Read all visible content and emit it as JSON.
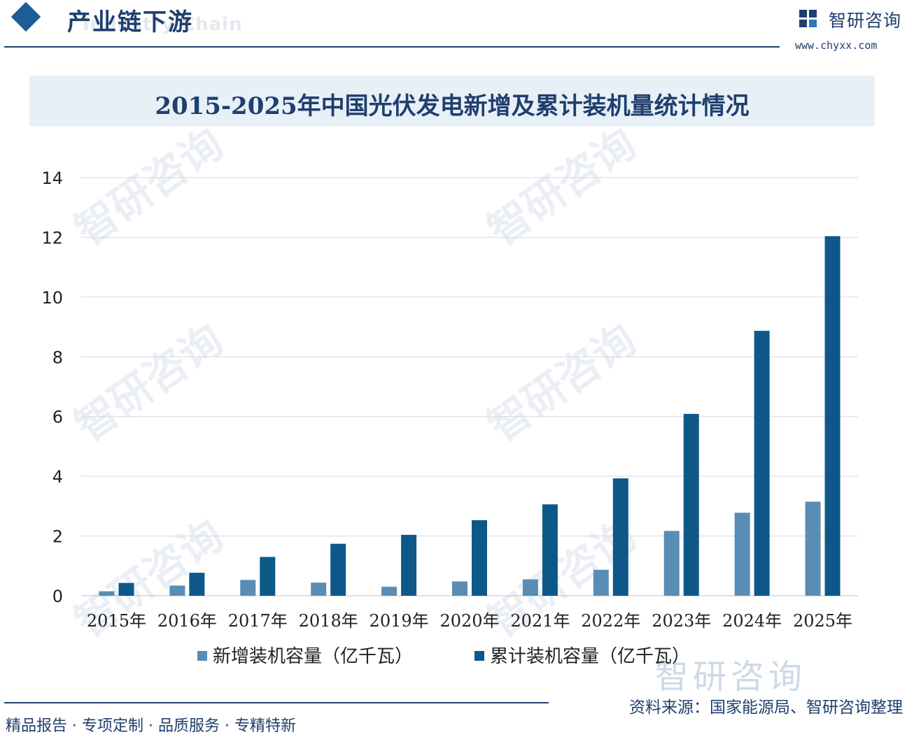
{
  "header": {
    "section_title": "产业链下游",
    "section_subtitle_en": "Industry Chain",
    "brand_name": "智研咨询",
    "brand_url": "www.chyxx.com"
  },
  "chart_data": {
    "type": "bar",
    "title": "2015-2025年中国光伏发电新增及累计装机量统计情况",
    "categories": [
      "2015年",
      "2016年",
      "2017年",
      "2018年",
      "2019年",
      "2020年",
      "2021年",
      "2022年",
      "2023年",
      "2024年",
      "2025年"
    ],
    "series": [
      {
        "name": "新增装机容量（亿千瓦）",
        "color": "#5a8db5",
        "values": [
          0.15,
          0.34,
          0.53,
          0.44,
          0.3,
          0.48,
          0.55,
          0.87,
          2.17,
          2.78,
          3.15
        ]
      },
      {
        "name": "累计装机容量（亿千瓦）",
        "color": "#0e5889",
        "values": [
          0.43,
          0.77,
          1.3,
          1.74,
          2.04,
          2.53,
          3.06,
          3.93,
          6.09,
          8.87,
          12.04
        ]
      }
    ],
    "ylim": [
      0,
      14
    ],
    "yticks": [
      0,
      2,
      4,
      6,
      8,
      10,
      12,
      14
    ],
    "grid": true,
    "legend_position": "bottom"
  },
  "footer": {
    "slogan": "精品报告 · 专项定制 · 品质服务 · 专精特新",
    "source": "资料来源：国家能源局、智研咨询整理"
  },
  "watermark": {
    "text": "智研咨询"
  },
  "colors": {
    "brand": "#1f3f6e",
    "grid": "#d4d9e0",
    "band": "#e8f0f7"
  }
}
